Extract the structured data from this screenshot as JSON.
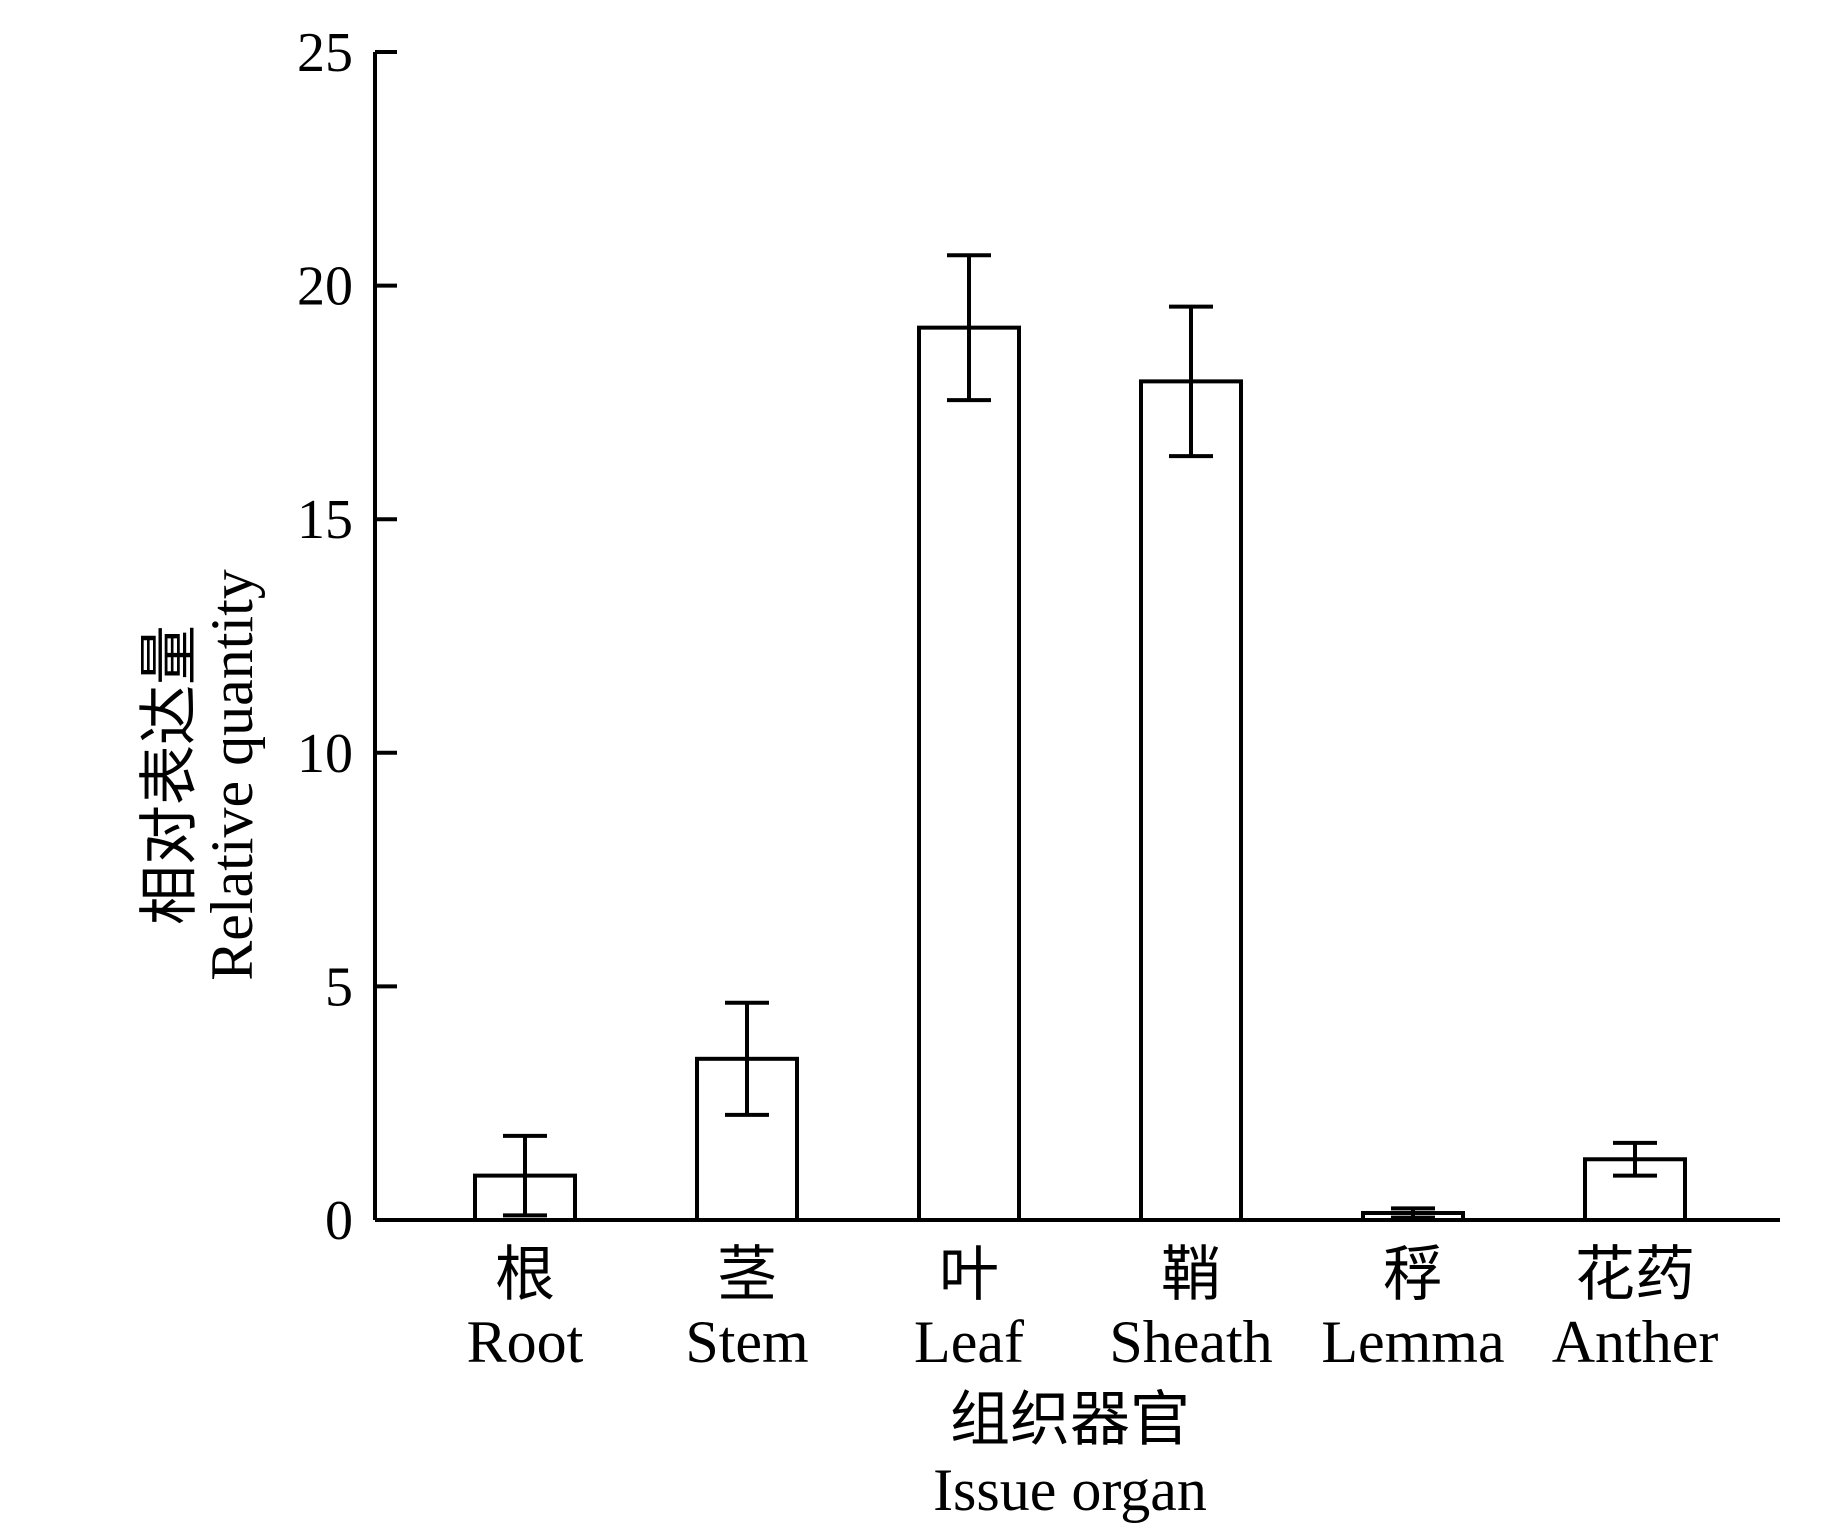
{
  "chart_data": {
    "type": "bar",
    "categories": [
      {
        "zh": "根",
        "en": "Root"
      },
      {
        "zh": "茎",
        "en": "Stem"
      },
      {
        "zh": "叶",
        "en": "Leaf"
      },
      {
        "zh": "鞘",
        "en": "Sheath"
      },
      {
        "zh": "稃",
        "en": "Lemma"
      },
      {
        "zh": "花药",
        "en": "Anther"
      }
    ],
    "values": [
      0.95,
      3.45,
      19.1,
      17.95,
      0.15,
      1.3
    ],
    "errors": [
      0.85,
      1.2,
      1.55,
      1.6,
      0.1,
      0.35
    ],
    "ylim": [
      0,
      25
    ],
    "yticks": [
      0,
      5,
      10,
      15,
      20,
      25
    ],
    "ylabel_zh": "相对表达量",
    "ylabel_en": "Relative quantity",
    "xlabel_zh": "组织器官",
    "xlabel_en": "Issue organ",
    "bar_fill": "#ffffff",
    "bar_stroke": "#000000"
  }
}
